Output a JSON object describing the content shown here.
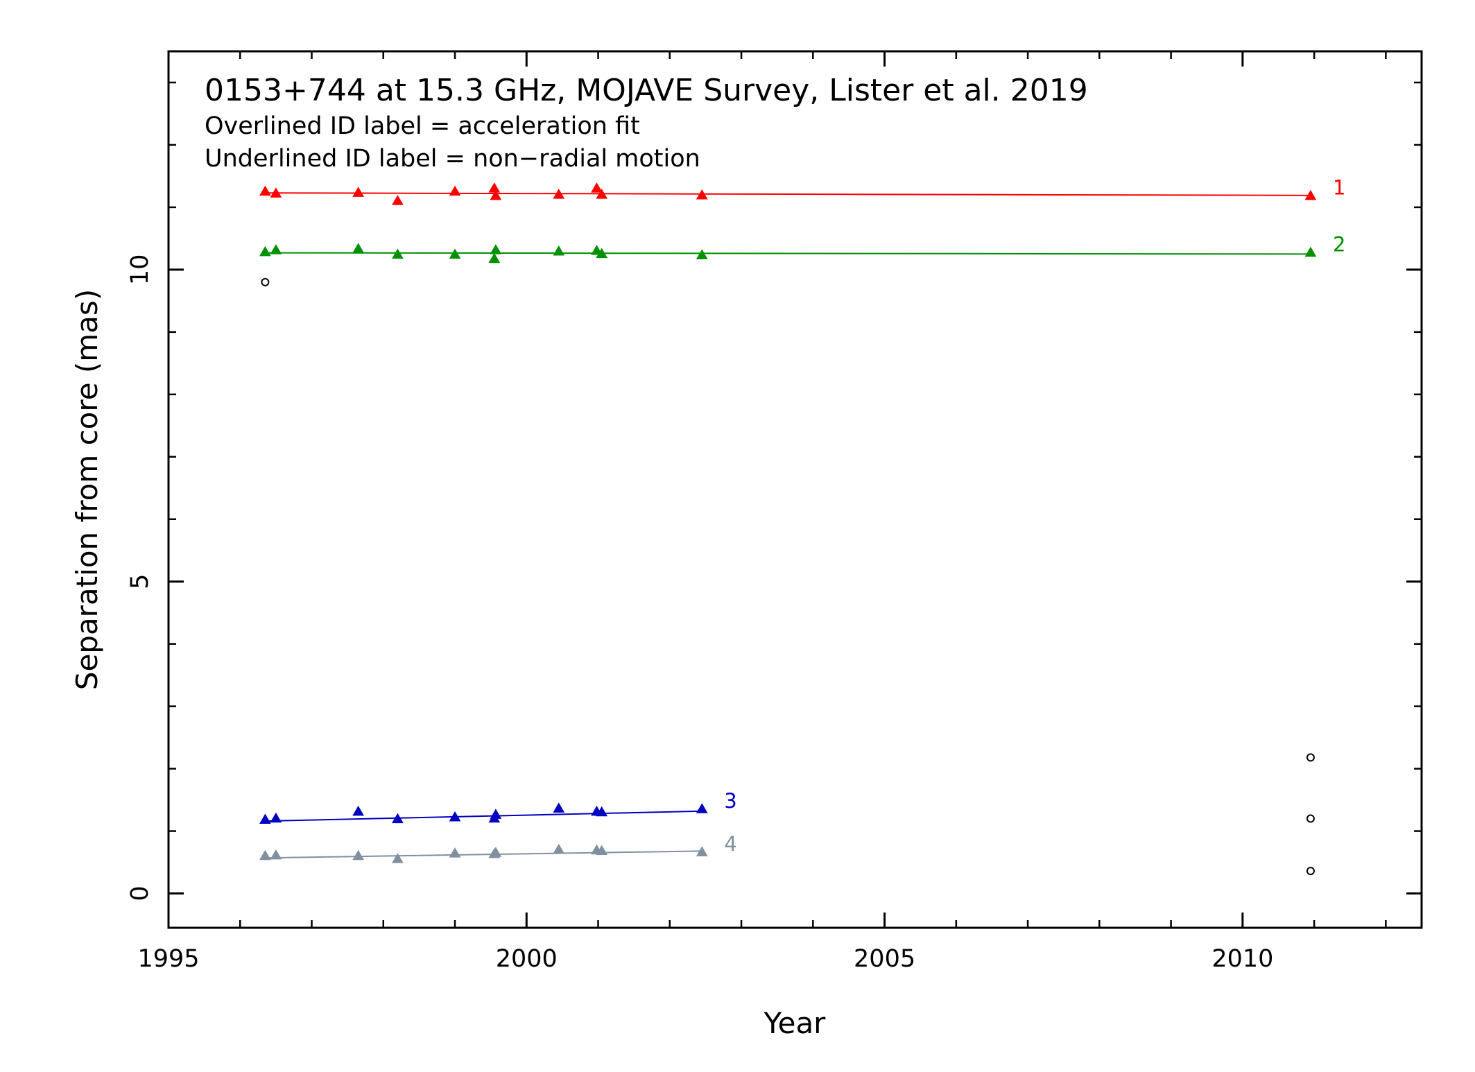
{
  "chart_data": {
    "type": "scatter",
    "title": "0153+744 at 15.3 GHz, MOJAVE Survey, Lister et al. 2019",
    "subtitle_lines": [
      "Overlined ID label = acceleration fit",
      "Underlined ID label = non−radial motion"
    ],
    "xlabel": "Year",
    "ylabel": "Separation from core (mas)",
    "xlim": [
      1995,
      2012.5
    ],
    "ylim": [
      -0.55,
      13.5
    ],
    "x_ticks": [
      1995,
      2000,
      2005,
      2010
    ],
    "x_tick_labels": [
      "1995",
      "2000",
      "2005",
      "2010"
    ],
    "y_ticks": [
      0,
      5,
      10
    ],
    "y_tick_labels": [
      "0",
      "5",
      "10"
    ],
    "x_minor_step": 1,
    "y_minor_step": 1,
    "grid": false,
    "series": [
      {
        "name": "1",
        "color": "#ff0000",
        "marker": "triangle",
        "x": [
          1996.35,
          1996.5,
          1997.65,
          1998.2,
          1999.0,
          1999.55,
          1999.57,
          2000.45,
          2000.98,
          2001.05,
          2002.45,
          2010.95
        ],
        "y": [
          11.25,
          11.22,
          11.23,
          11.1,
          11.25,
          11.3,
          11.18,
          11.2,
          11.3,
          11.2,
          11.19,
          11.18
        ],
        "fit": {
          "x": [
            1996.35,
            2010.95
          ],
          "y": [
            11.23,
            11.19
          ]
        }
      },
      {
        "name": "2",
        "color": "#009000",
        "marker": "triangle",
        "x": [
          1996.35,
          1996.5,
          1997.65,
          1998.2,
          1999.0,
          1999.55,
          1999.57,
          2000.45,
          2000.98,
          2001.05,
          2002.45,
          2010.95
        ],
        "y": [
          10.28,
          10.31,
          10.33,
          10.24,
          10.24,
          10.17,
          10.31,
          10.29,
          10.3,
          10.25,
          10.23,
          10.27
        ],
        "fit": {
          "x": [
            1996.35,
            2010.95
          ],
          "y": [
            10.27,
            10.25
          ]
        }
      },
      {
        "name": "3",
        "color": "#0000c0",
        "marker": "triangle",
        "x": [
          1996.35,
          1996.5,
          1997.65,
          1998.2,
          1999.0,
          1999.55,
          1999.57,
          2000.45,
          2000.98,
          2001.05,
          2002.45
        ],
        "y": [
          1.18,
          1.2,
          1.31,
          1.19,
          1.22,
          1.2,
          1.26,
          1.36,
          1.31,
          1.3,
          1.35
        ],
        "fit": {
          "x": [
            1996.35,
            2002.45
          ],
          "y": [
            1.16,
            1.32
          ]
        }
      },
      {
        "name": "4",
        "color": "#8090a0",
        "marker": "triangle",
        "x": [
          1996.35,
          1996.5,
          1997.65,
          1998.2,
          1999.0,
          1999.55,
          1999.57,
          2000.45,
          2000.98,
          2001.05,
          2002.45
        ],
        "y": [
          0.6,
          0.61,
          0.6,
          0.55,
          0.64,
          0.63,
          0.65,
          0.7,
          0.69,
          0.68,
          0.66
        ],
        "fit": {
          "x": [
            1996.35,
            2002.45
          ],
          "y": [
            0.57,
            0.68
          ]
        }
      },
      {
        "color": "#000000",
        "marker": "circle",
        "x": [
          1996.35,
          2010.95,
          2010.95,
          2010.95
        ],
        "y": [
          9.8,
          2.18,
          1.2,
          0.36
        ]
      }
    ]
  }
}
